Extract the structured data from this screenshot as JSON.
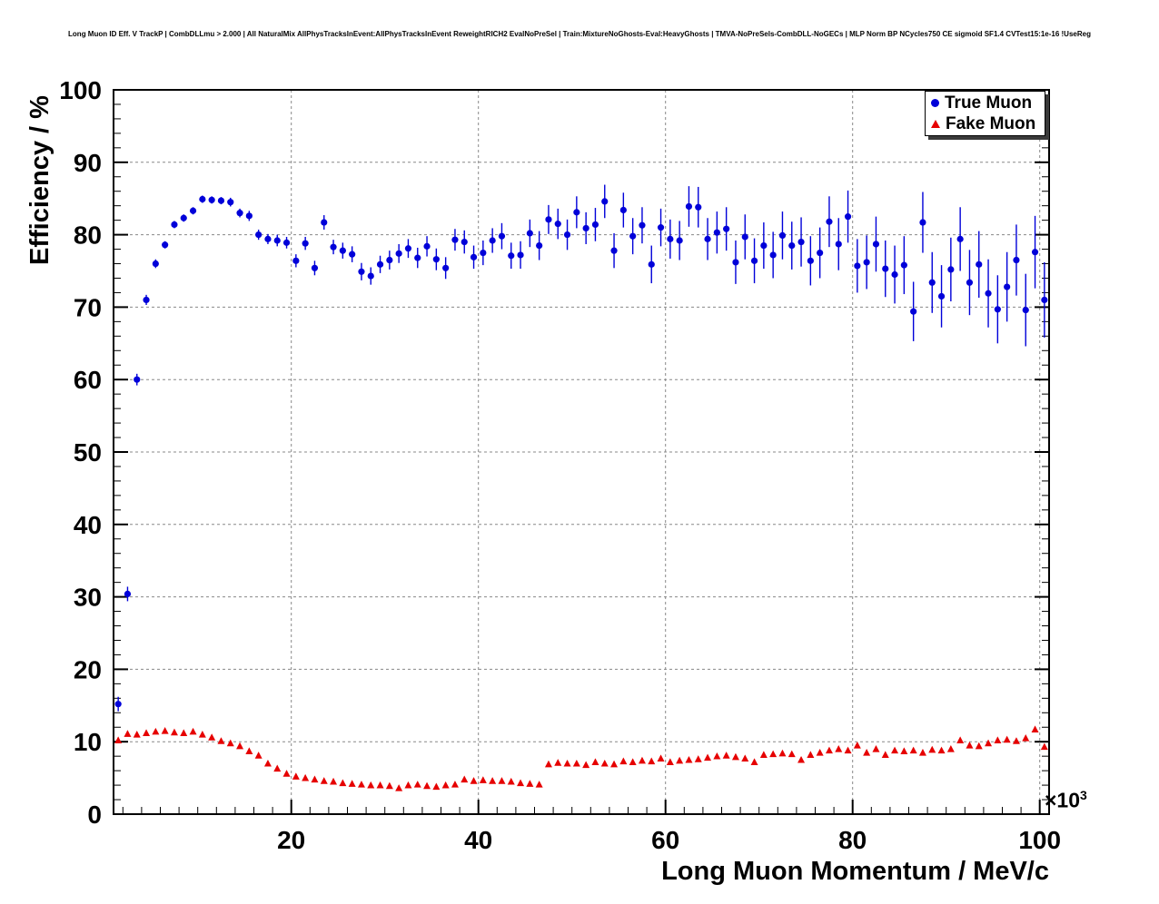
{
  "chart_data": {
    "type": "scatter",
    "title": "Long Muon ID Eff. V TrackP | CombDLLmu > 2.000 | All NaturalMix AllPhysTracksInEvent:AllPhysTracksInEvent ReweightRICH2 EvalNoPreSel | Train:MixtureNoGhosts-Eval:HeavyGhosts | TMVA-NoPreSels-CombDLL-NoGECs | MLP Norm BP NCycles750 CE sigmoid SF1.4 CVTest15:1e-16 !UseReg",
    "xlabel": "Long Muon Momentum / MeV/c",
    "ylabel": "Efficiency / %",
    "x_scale_prefix": "×10",
    "x_scale_exponent": "3",
    "x_unit": "10^3 MeV/c",
    "xlim": [
      1,
      101
    ],
    "ylim": [
      0,
      100
    ],
    "xticks": [
      20,
      40,
      60,
      80,
      100
    ],
    "yticks": [
      0,
      10,
      20,
      30,
      40,
      50,
      60,
      70,
      80,
      90,
      100
    ],
    "grid": true,
    "grid_color": "#888888",
    "frame_color": "#000000",
    "x_start": 1.5,
    "x_step": 1.0,
    "legend": {
      "position": "top-right"
    },
    "series": [
      {
        "name": "True Muon",
        "marker": "circle",
        "color": "#0000d9",
        "y": [
          15.2,
          30.4,
          60.0,
          71.0,
          76.0,
          78.6,
          81.4,
          82.3,
          83.3,
          84.9,
          84.8,
          84.7,
          84.5,
          83.0,
          82.6,
          80.0,
          79.4,
          79.2,
          78.9,
          76.4,
          78.8,
          75.4,
          81.7,
          78.3,
          77.8,
          77.3,
          74.9,
          74.3,
          75.9,
          76.5,
          77.4,
          78.1,
          76.8,
          78.4,
          76.6,
          75.4,
          79.3,
          79.0,
          76.9,
          77.5,
          79.2,
          79.8,
          77.1,
          77.2,
          80.2,
          78.5,
          82.1,
          81.5,
          80.0,
          83.1,
          80.9,
          81.4,
          84.6,
          77.8,
          83.4,
          79.8,
          81.3,
          75.9,
          81.0,
          79.4,
          79.2,
          83.9,
          83.8,
          79.4,
          80.3,
          80.8,
          76.2,
          79.7,
          76.4,
          78.5,
          77.2,
          79.9,
          78.5,
          79.0,
          76.4,
          77.5,
          81.8,
          78.7,
          82.5,
          75.7,
          76.2,
          78.7,
          75.3,
          74.5,
          75.8,
          69.4,
          81.7,
          73.4,
          71.5,
          75.2,
          79.4,
          73.4,
          75.9,
          71.9,
          69.7,
          72.8,
          76.5,
          69.6,
          77.6,
          71.0
        ],
        "yerr": [
          1.0,
          1.0,
          0.8,
          0.7,
          0.6,
          0.5,
          0.5,
          0.5,
          0.5,
          0.5,
          0.5,
          0.5,
          0.6,
          0.6,
          0.7,
          0.7,
          0.7,
          0.8,
          0.8,
          0.9,
          0.9,
          1.0,
          1.0,
          1.0,
          1.1,
          1.1,
          1.2,
          1.2,
          1.2,
          1.3,
          1.3,
          1.3,
          1.4,
          1.4,
          1.5,
          1.5,
          1.5,
          1.6,
          1.6,
          1.7,
          1.7,
          1.8,
          1.8,
          1.9,
          1.9,
          2.0,
          2.0,
          2.1,
          2.1,
          2.2,
          2.2,
          2.3,
          2.3,
          2.4,
          2.4,
          2.5,
          2.5,
          2.6,
          2.6,
          2.7,
          2.7,
          2.8,
          2.8,
          2.9,
          2.9,
          3.0,
          3.0,
          3.1,
          3.1,
          3.2,
          3.2,
          3.3,
          3.3,
          3.4,
          3.4,
          3.5,
          3.5,
          3.6,
          3.6,
          3.7,
          3.7,
          3.8,
          3.9,
          4.0,
          4.0,
          4.1,
          4.2,
          4.2,
          4.3,
          4.4,
          4.4,
          4.5,
          4.6,
          4.7,
          4.7,
          4.8,
          4.9,
          5.0,
          5.0,
          5.2
        ]
      },
      {
        "name": "Fake Muon",
        "marker": "triangle",
        "color": "#e60000",
        "y": [
          10.2,
          11.1,
          11.0,
          11.2,
          11.4,
          11.5,
          11.3,
          11.2,
          11.4,
          11.0,
          10.6,
          10.1,
          9.8,
          9.4,
          8.7,
          8.1,
          7.0,
          6.3,
          5.6,
          5.2,
          5.0,
          4.8,
          4.6,
          4.5,
          4.3,
          4.2,
          4.1,
          4.0,
          4.0,
          3.9,
          3.6,
          4.0,
          4.1,
          3.9,
          3.8,
          4.0,
          4.1,
          4.8,
          4.6,
          4.7,
          4.6,
          4.6,
          4.5,
          4.3,
          4.2,
          4.1,
          6.9,
          7.1,
          7.0,
          7.0,
          6.8,
          7.2,
          7.0,
          6.9,
          7.3,
          7.2,
          7.4,
          7.3,
          7.7,
          7.2,
          7.4,
          7.5,
          7.6,
          7.8,
          8.0,
          8.1,
          7.9,
          7.7,
          7.2,
          8.2,
          8.3,
          8.4,
          8.3,
          7.5,
          8.2,
          8.5,
          8.8,
          9.0,
          8.8,
          9.5,
          8.5,
          9.0,
          8.2,
          8.8,
          8.7,
          8.8,
          8.5,
          8.9,
          8.8,
          9.0,
          10.2,
          9.5,
          9.4,
          9.8,
          10.2,
          10.3,
          10.1,
          10.5,
          11.7,
          9.3
        ],
        "yerr": 0.35
      }
    ]
  }
}
